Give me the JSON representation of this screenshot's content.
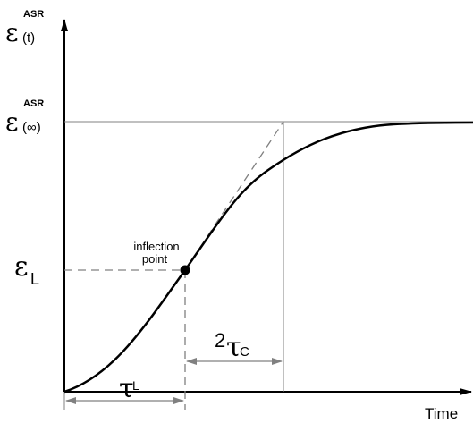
{
  "y_axis": {
    "symbol": "ε",
    "superscript": "ASR",
    "argument": "(t)"
  },
  "asymptote_label": {
    "symbol": "ε",
    "superscript": "ASR",
    "argument": "(∞)"
  },
  "latency_strain_label": {
    "symbol": "ε",
    "subscript": "L"
  },
  "inflection_point_label": {
    "line1": "inflection",
    "line2": "point"
  },
  "characteristic_time_label": {
    "prefix": "2",
    "symbol": "τ",
    "subscript": "C"
  },
  "latency_time_label": {
    "symbol": "τ",
    "superscript": "L"
  },
  "x_axis": {
    "label": "Time"
  },
  "colors": {
    "curve": "#000000",
    "axes": "#000000",
    "guides": "#808080",
    "dashed": "#808080"
  }
}
